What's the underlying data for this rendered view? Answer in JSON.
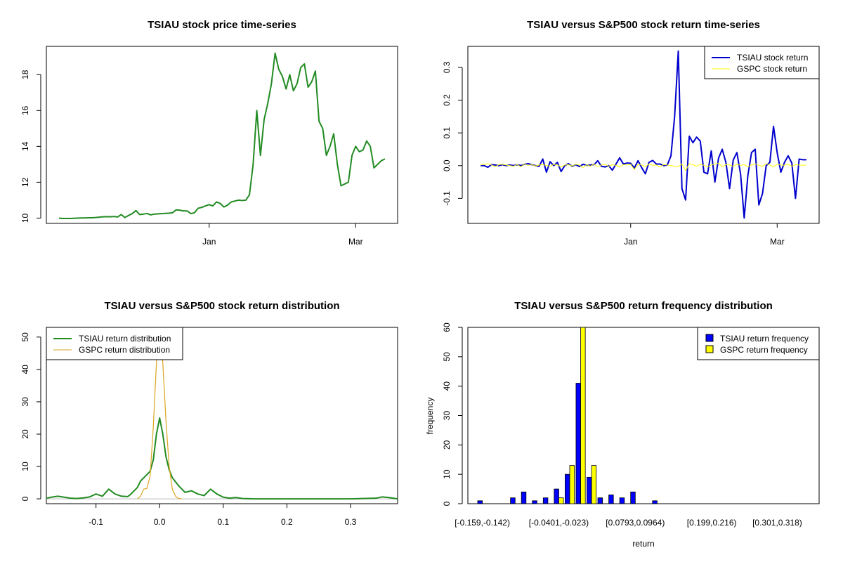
{
  "chart_data": [
    {
      "type": "line",
      "title": "TSIAU stock price time-series",
      "xlabel": "",
      "ylabel": "",
      "x_tick_labels": [
        "Jan",
        "Mar"
      ],
      "x_tick_index": [
        41,
        81
      ],
      "y_ticks": [
        10,
        12,
        14,
        16,
        18
      ],
      "ylim": [
        9.9,
        19.5
      ],
      "color": "#228B22",
      "series": [
        {
          "name": "TSIAU stock price",
          "color": "#228B22",
          "values": [
            10.0,
            9.98,
            9.98,
            9.98,
            9.99,
            10.0,
            10.01,
            10.01,
            10.02,
            10.02,
            10.03,
            10.05,
            10.07,
            10.08,
            10.07,
            10.09,
            10.06,
            10.2,
            10.03,
            10.15,
            10.25,
            10.42,
            10.2,
            10.22,
            10.26,
            10.18,
            10.22,
            10.24,
            10.25,
            10.26,
            10.27,
            10.3,
            10.46,
            10.44,
            10.4,
            10.4,
            10.25,
            10.3,
            10.55,
            10.6,
            10.68,
            10.75,
            10.68,
            10.9,
            10.82,
            10.62,
            10.72,
            10.9,
            10.95,
            11.0,
            10.98,
            11.0,
            11.3,
            13.0,
            16.0,
            13.5,
            15.5,
            16.4,
            17.5,
            19.2,
            18.3,
            17.9,
            17.2,
            18.0,
            17.1,
            17.5,
            18.4,
            18.6,
            17.3,
            17.6,
            18.2,
            15.4,
            15.0,
            13.5,
            14.0,
            14.7,
            13.0,
            11.8,
            11.9,
            12.0,
            13.5,
            14.0,
            13.7,
            13.8,
            14.3,
            14.0,
            12.8,
            13.0,
            13.2,
            13.3
          ]
        }
      ]
    },
    {
      "type": "line",
      "title": "TSIAU versus S&P500 stock return time-series",
      "xlabel": "",
      "ylabel": "",
      "x_tick_labels": [
        "Jan",
        "Mar"
      ],
      "x_tick_index": [
        41,
        81
      ],
      "y_ticks": [
        -0.1,
        0.0,
        0.1,
        0.2,
        0.3
      ],
      "ylim": [
        -0.17,
        0.36
      ],
      "legend": "top-right",
      "series": [
        {
          "name": "TSIAU stock return",
          "color": "#0000CD",
          "values": [
            0.0,
            0.0,
            -0.005,
            0.003,
            0.002,
            0.0,
            0.003,
            0.0,
            0.002,
            0.0,
            0.003,
            0.0,
            0.004,
            0.006,
            0.003,
            0.0,
            -0.002,
            0.02,
            -0.02,
            0.012,
            0.0,
            0.01,
            -0.018,
            0.0,
            0.006,
            -0.002,
            0.003,
            -0.003,
            0.004,
            0.001,
            0.002,
            0.003,
            0.015,
            -0.002,
            -0.004,
            0.0,
            -0.014,
            0.005,
            0.024,
            0.005,
            0.008,
            0.007,
            -0.007,
            0.015,
            -0.006,
            -0.025,
            0.01,
            0.016,
            0.005,
            0.005,
            0.0,
            0.002,
            0.03,
            0.15,
            0.35,
            -0.07,
            -0.105,
            0.09,
            0.07,
            0.087,
            0.075,
            -0.02,
            -0.025,
            0.045,
            -0.05,
            0.023,
            0.05,
            0.01,
            -0.07,
            0.017,
            0.04,
            -0.025,
            -0.16,
            -0.03,
            0.04,
            0.05,
            -0.12,
            -0.085,
            0.0,
            0.01,
            0.12,
            0.04,
            -0.02,
            0.01,
            0.03,
            0.008,
            -0.1,
            0.02,
            0.018,
            0.018
          ]
        },
        {
          "name": "GSPC stock return",
          "color": "#FFFF00",
          "values": [
            0.002,
            0.004,
            0.006,
            0.002,
            -0.003,
            0.003,
            0.004,
            0.002,
            0.0,
            -0.002,
            0.004,
            -0.004,
            0.005,
            0.001,
            0.003,
            -0.001,
            0.002,
            0.003,
            0.001,
            -0.002,
            0.004,
            0.002,
            -0.004,
            0.002,
            0.003,
            -0.001,
            0.004,
            0.002,
            -0.006,
            0.003,
            -0.002,
            0.005,
            -0.003,
            0.002,
            0.004,
            -0.002,
            0.003,
            0.001,
            -0.004,
            0.003,
            0.002,
            0.004,
            -0.012,
            0.004,
            0.002,
            -0.003,
            0.005,
            0.001,
            0.002,
            -0.004,
            0.003,
            0.002,
            0.0,
            -0.002,
            -0.003,
            0.005,
            -0.015,
            0.006,
            0.003,
            -0.002,
            0.004,
            0.001,
            -0.003,
            0.002,
            0.005,
            0.008,
            -0.004,
            0.003,
            0.002,
            -0.002,
            0.004,
            0.001,
            0.003,
            -0.003,
            0.002,
            0.005,
            0.001,
            -0.002,
            0.006,
            0.002,
            -0.003,
            0.004,
            0.002,
            0.001,
            0.004,
            -0.002,
            0.003,
            0.002,
            0.001,
            0.002
          ]
        }
      ]
    },
    {
      "type": "line",
      "title": "TSIAU versus S&P500 stock return distribution",
      "xlabel": "",
      "ylabel": "",
      "x_ticks": [
        -0.1,
        0.0,
        0.1,
        0.2,
        0.3
      ],
      "y_ticks": [
        0,
        10,
        20,
        30,
        40,
        50
      ],
      "xlim": [
        -0.178,
        0.374
      ],
      "ylim": [
        -1.5,
        53
      ],
      "legend": "top-left",
      "series": [
        {
          "name": "TSIAU return distribution",
          "color": "#228B22",
          "x": [
            -0.178,
            -0.17,
            -0.16,
            -0.15,
            -0.14,
            -0.13,
            -0.12,
            -0.11,
            -0.1,
            -0.09,
            -0.08,
            -0.07,
            -0.06,
            -0.05,
            -0.045,
            -0.04,
            -0.035,
            -0.03,
            -0.025,
            -0.02,
            -0.015,
            -0.01,
            -0.005,
            0.0,
            0.005,
            0.01,
            0.015,
            0.02,
            0.03,
            0.04,
            0.05,
            0.06,
            0.07,
            0.08,
            0.09,
            0.1,
            0.11,
            0.12,
            0.13,
            0.15,
            0.2,
            0.25,
            0.3,
            0.34,
            0.35,
            0.36,
            0.374
          ],
          "y": [
            0.2,
            0.5,
            0.8,
            0.5,
            0.2,
            0.1,
            0.3,
            0.6,
            1.5,
            0.8,
            3.0,
            1.5,
            0.8,
            0.7,
            1.5,
            2.5,
            3.5,
            5.5,
            6.5,
            7.5,
            8.5,
            12.0,
            20.0,
            25.0,
            20.0,
            13.0,
            9.0,
            6.5,
            4.0,
            2.0,
            2.5,
            1.5,
            1.0,
            3.0,
            1.5,
            0.5,
            0.2,
            0.4,
            0.1,
            0.0,
            0.0,
            0.0,
            0.0,
            0.2,
            0.6,
            0.4,
            0.0
          ]
        },
        {
          "name": "GSPC return distribution",
          "color": "#DAA520",
          "x": [
            -0.035,
            -0.03,
            -0.025,
            -0.02,
            -0.015,
            -0.01,
            -0.005,
            0.0,
            0.005,
            0.01,
            0.015,
            0.02,
            0.025,
            0.03,
            0.035
          ],
          "y": [
            0.0,
            0.8,
            3.0,
            3.2,
            7.0,
            22.0,
            42.0,
            53.0,
            42.0,
            24.0,
            10.0,
            3.0,
            0.8,
            0.1,
            0.0
          ]
        }
      ]
    },
    {
      "type": "bar",
      "title": "TSIAU versus S&P500 return frequency distribution",
      "xlabel": "return",
      "ylabel": "frequency",
      "ylim": [
        0,
        60
      ],
      "y_ticks": [
        0,
        10,
        20,
        30,
        40,
        50,
        60
      ],
      "legend": "top-right",
      "categories": [
        "[-0.159,-0.142)",
        "[-0.142,-0.125)",
        "[-0.125,-0.108)",
        "[-0.108,-0.0913)",
        "[-0.0913,-0.0742)",
        "[-0.0742,-0.0572)",
        "[-0.0572,-0.0401)",
        "[-0.0401,-0.023)",
        "[-0.023,-0.00598)",
        "[-0.00598,0.0111)",
        "[0.0111,0.0282)",
        "[0.0282,0.0452)",
        "[0.0452,0.0623)",
        "[0.0623,0.0793)",
        "[0.0793,0.0964)",
        "[0.0964,0.113)",
        "[0.113,0.131)",
        "[0.131,0.148)",
        "[0.148,0.165)",
        "[0.165,0.182)",
        "[0.182,0.199)",
        "[0.199,0.216)",
        "[0.216,0.233)",
        "[0.233,0.25)",
        "[0.25,0.267)",
        "[0.267,0.284)",
        "[0.284,0.301)",
        "[0.301,0.318)",
        "[0.318,0.335)",
        "[0.335,0.352)"
      ],
      "visible_x_labels": {
        "0": "[-0.159,-0.142)",
        "7": "[-0.0401,-0.023)",
        "14": "[0.0793,0.0964)",
        "21": "[0.199,0.216)",
        "27": "[0.301,0.318)"
      },
      "series": [
        {
          "name": "TSIAU return frequency",
          "color": "#0000FF",
          "values": [
            1,
            0,
            0,
            2,
            4,
            1,
            2,
            5,
            10,
            41,
            9,
            2,
            3,
            2,
            4,
            0,
            1,
            0,
            0,
            0,
            0,
            0,
            0,
            0,
            0,
            0,
            0,
            0,
            0,
            0
          ]
        },
        {
          "name": "GSPC return frequency",
          "color": "#FFFF00",
          "values": [
            0,
            0,
            0,
            0,
            0,
            0,
            0,
            2,
            13,
            60,
            13,
            0,
            0,
            0,
            0,
            0,
            0,
            0,
            0,
            0,
            0,
            0,
            0,
            0,
            0,
            0,
            0,
            0,
            0,
            0
          ]
        }
      ]
    }
  ]
}
